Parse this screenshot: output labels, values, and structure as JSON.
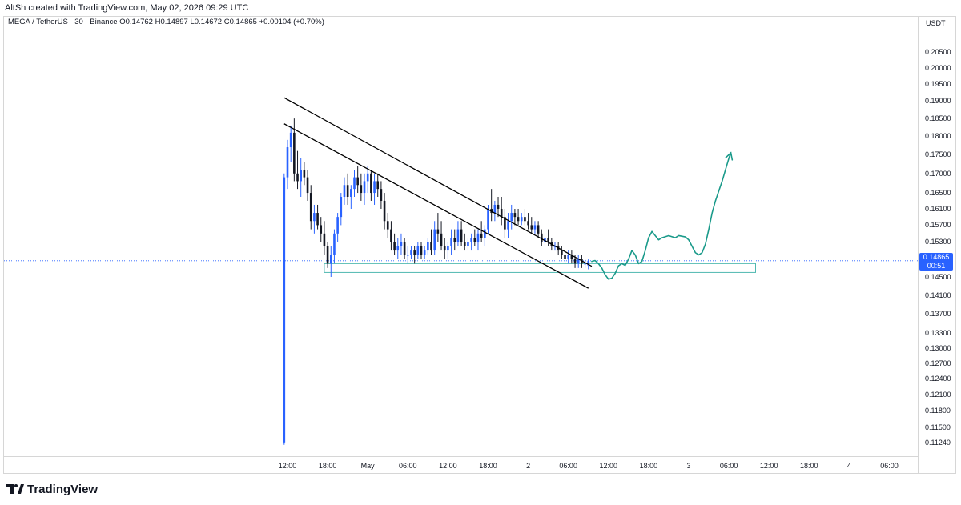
{
  "header": {
    "caption": "AltSh created with TradingView.com, May 02, 2026 09:29 UTC"
  },
  "legend": {
    "symbol": "MEGA / TetherUS · 30 · Binance",
    "open": "O0.14762",
    "high": "H0.14897",
    "low": "L0.14672",
    "close": "C0.14865",
    "change": "+0.00104 (+0.70%)"
  },
  "price_axis": {
    "unit": "USDT",
    "current_price": "0.14865",
    "countdown": "00:51"
  },
  "brand": {
    "name": "TradingView"
  },
  "colors": {
    "bull": "#2962ff",
    "bear": "#131722",
    "trendline": "#000000",
    "projection": "#1a9a8a",
    "support_zone": "#4fb8b0",
    "current_price_line": "#2962ff"
  },
  "chart_data": {
    "type": "candlestick",
    "title": "MEGA / TetherUS · 30 · Binance",
    "y_scale": "log",
    "ylim": [
      0.111,
      0.212
    ],
    "y_ticks": [
      "0.20500",
      "0.20000",
      "0.19500",
      "0.19000",
      "0.18500",
      "0.18000",
      "0.17500",
      "0.17000",
      "0.16500",
      "0.16100",
      "0.15700",
      "0.15300",
      "0.14900",
      "0.14500",
      "0.14100",
      "0.13700",
      "0.13300",
      "0.13000",
      "0.12700",
      "0.12400",
      "0.12100",
      "0.11800",
      "0.11500",
      "0.11240"
    ],
    "x_ticks": [
      "12:00",
      "18:00",
      "May",
      "06:00",
      "12:00",
      "18:00",
      "2",
      "06:00",
      "12:00",
      "18:00",
      "3",
      "06:00",
      "12:00",
      "18:00",
      "4",
      "06:00"
    ],
    "x_tick_times": [
      0,
      6,
      12,
      18,
      24,
      30,
      36,
      42,
      48,
      54,
      60,
      66,
      72,
      78,
      84,
      90
    ],
    "time_unit": "hours since May 1 12:00",
    "candles": [
      {
        "t": -0.5,
        "o": 0.1124,
        "h": 0.17,
        "l": 0.112,
        "c": 0.169
      },
      {
        "t": 0.0,
        "o": 0.169,
        "h": 0.179,
        "l": 0.166,
        "c": 0.177
      },
      {
        "t": 0.5,
        "o": 0.177,
        "h": 0.183,
        "l": 0.173,
        "c": 0.181
      },
      {
        "t": 1.0,
        "o": 0.181,
        "h": 0.185,
        "l": 0.168,
        "c": 0.17
      },
      {
        "t": 1.5,
        "o": 0.17,
        "h": 0.176,
        "l": 0.166,
        "c": 0.168
      },
      {
        "t": 2.0,
        "o": 0.168,
        "h": 0.174,
        "l": 0.164,
        "c": 0.171
      },
      {
        "t": 2.5,
        "o": 0.171,
        "h": 0.173,
        "l": 0.167,
        "c": 0.169
      },
      {
        "t": 3.0,
        "o": 0.169,
        "h": 0.171,
        "l": 0.163,
        "c": 0.165
      },
      {
        "t": 3.5,
        "o": 0.165,
        "h": 0.167,
        "l": 0.156,
        "c": 0.158
      },
      {
        "t": 4.0,
        "o": 0.158,
        "h": 0.162,
        "l": 0.155,
        "c": 0.16
      },
      {
        "t": 4.5,
        "o": 0.16,
        "h": 0.162,
        "l": 0.156,
        "c": 0.157
      },
      {
        "t": 5.0,
        "o": 0.157,
        "h": 0.159,
        "l": 0.153,
        "c": 0.155
      },
      {
        "t": 5.5,
        "o": 0.155,
        "h": 0.158,
        "l": 0.15,
        "c": 0.152
      },
      {
        "t": 6.0,
        "o": 0.152,
        "h": 0.153,
        "l": 0.147,
        "c": 0.148
      },
      {
        "t": 6.5,
        "o": 0.148,
        "h": 0.152,
        "l": 0.145,
        "c": 0.15
      },
      {
        "t": 7.0,
        "o": 0.15,
        "h": 0.156,
        "l": 0.148,
        "c": 0.155
      },
      {
        "t": 7.5,
        "o": 0.155,
        "h": 0.16,
        "l": 0.153,
        "c": 0.159
      },
      {
        "t": 8.0,
        "o": 0.159,
        "h": 0.165,
        "l": 0.157,
        "c": 0.164
      },
      {
        "t": 8.5,
        "o": 0.164,
        "h": 0.169,
        "l": 0.162,
        "c": 0.167
      },
      {
        "t": 9.0,
        "o": 0.167,
        "h": 0.17,
        "l": 0.162,
        "c": 0.164
      },
      {
        "t": 9.5,
        "o": 0.164,
        "h": 0.167,
        "l": 0.161,
        "c": 0.166
      },
      {
        "t": 10.0,
        "o": 0.166,
        "h": 0.171,
        "l": 0.164,
        "c": 0.169
      },
      {
        "t": 10.5,
        "o": 0.169,
        "h": 0.172,
        "l": 0.165,
        "c": 0.167
      },
      {
        "t": 11.0,
        "o": 0.167,
        "h": 0.17,
        "l": 0.163,
        "c": 0.165
      },
      {
        "t": 11.5,
        "o": 0.165,
        "h": 0.17,
        "l": 0.162,
        "c": 0.168
      },
      {
        "t": 12.0,
        "o": 0.168,
        "h": 0.172,
        "l": 0.165,
        "c": 0.17
      },
      {
        "t": 12.5,
        "o": 0.17,
        "h": 0.171,
        "l": 0.163,
        "c": 0.165
      },
      {
        "t": 13.0,
        "o": 0.165,
        "h": 0.17,
        "l": 0.162,
        "c": 0.168
      },
      {
        "t": 13.5,
        "o": 0.168,
        "h": 0.17,
        "l": 0.164,
        "c": 0.166
      },
      {
        "t": 14.0,
        "o": 0.166,
        "h": 0.168,
        "l": 0.161,
        "c": 0.163
      },
      {
        "t": 14.5,
        "o": 0.163,
        "h": 0.165,
        "l": 0.156,
        "c": 0.158
      },
      {
        "t": 15.0,
        "o": 0.158,
        "h": 0.16,
        "l": 0.154,
        "c": 0.156
      },
      {
        "t": 15.5,
        "o": 0.156,
        "h": 0.158,
        "l": 0.151,
        "c": 0.153
      },
      {
        "t": 16.0,
        "o": 0.153,
        "h": 0.155,
        "l": 0.15,
        "c": 0.151
      },
      {
        "t": 16.5,
        "o": 0.151,
        "h": 0.154,
        "l": 0.149,
        "c": 0.152
      },
      {
        "t": 17.0,
        "o": 0.152,
        "h": 0.155,
        "l": 0.15,
        "c": 0.153
      },
      {
        "t": 17.5,
        "o": 0.153,
        "h": 0.154,
        "l": 0.149,
        "c": 0.15
      },
      {
        "t": 18.0,
        "o": 0.15,
        "h": 0.152,
        "l": 0.148,
        "c": 0.15
      },
      {
        "t": 18.5,
        "o": 0.15,
        "h": 0.152,
        "l": 0.149,
        "c": 0.151
      },
      {
        "t": 19.0,
        "o": 0.151,
        "h": 0.152,
        "l": 0.148,
        "c": 0.15
      },
      {
        "t": 19.5,
        "o": 0.15,
        "h": 0.153,
        "l": 0.149,
        "c": 0.152
      },
      {
        "t": 20.0,
        "o": 0.152,
        "h": 0.153,
        "l": 0.149,
        "c": 0.15
      },
      {
        "t": 20.5,
        "o": 0.15,
        "h": 0.152,
        "l": 0.149,
        "c": 0.151
      },
      {
        "t": 21.0,
        "o": 0.151,
        "h": 0.154,
        "l": 0.15,
        "c": 0.153
      },
      {
        "t": 21.5,
        "o": 0.153,
        "h": 0.156,
        "l": 0.15,
        "c": 0.151
      },
      {
        "t": 22.0,
        "o": 0.151,
        "h": 0.158,
        "l": 0.15,
        "c": 0.156
      },
      {
        "t": 22.5,
        "o": 0.156,
        "h": 0.16,
        "l": 0.153,
        "c": 0.155
      },
      {
        "t": 23.0,
        "o": 0.155,
        "h": 0.158,
        "l": 0.151,
        "c": 0.152
      },
      {
        "t": 23.5,
        "o": 0.152,
        "h": 0.154,
        "l": 0.149,
        "c": 0.151
      },
      {
        "t": 24.0,
        "o": 0.151,
        "h": 0.153,
        "l": 0.149,
        "c": 0.152
      },
      {
        "t": 24.5,
        "o": 0.152,
        "h": 0.156,
        "l": 0.15,
        "c": 0.154
      },
      {
        "t": 25.0,
        "o": 0.154,
        "h": 0.156,
        "l": 0.151,
        "c": 0.153
      },
      {
        "t": 25.5,
        "o": 0.153,
        "h": 0.158,
        "l": 0.152,
        "c": 0.156
      },
      {
        "t": 26.0,
        "o": 0.156,
        "h": 0.158,
        "l": 0.152,
        "c": 0.153
      },
      {
        "t": 26.5,
        "o": 0.153,
        "h": 0.155,
        "l": 0.151,
        "c": 0.152
      },
      {
        "t": 27.0,
        "o": 0.152,
        "h": 0.154,
        "l": 0.151,
        "c": 0.153
      },
      {
        "t": 27.5,
        "o": 0.153,
        "h": 0.155,
        "l": 0.151,
        "c": 0.154
      },
      {
        "t": 28.0,
        "o": 0.154,
        "h": 0.156,
        "l": 0.152,
        "c": 0.153
      },
      {
        "t": 28.5,
        "o": 0.153,
        "h": 0.156,
        "l": 0.151,
        "c": 0.155
      },
      {
        "t": 29.0,
        "o": 0.155,
        "h": 0.158,
        "l": 0.153,
        "c": 0.154
      },
      {
        "t": 29.5,
        "o": 0.154,
        "h": 0.157,
        "l": 0.152,
        "c": 0.156
      },
      {
        "t": 30.0,
        "o": 0.156,
        "h": 0.162,
        "l": 0.155,
        "c": 0.161
      },
      {
        "t": 30.5,
        "o": 0.161,
        "h": 0.166,
        "l": 0.158,
        "c": 0.16
      },
      {
        "t": 31.0,
        "o": 0.16,
        "h": 0.163,
        "l": 0.158,
        "c": 0.162
      },
      {
        "t": 31.5,
        "o": 0.162,
        "h": 0.164,
        "l": 0.159,
        "c": 0.161
      },
      {
        "t": 32.0,
        "o": 0.161,
        "h": 0.164,
        "l": 0.157,
        "c": 0.159
      },
      {
        "t": 32.5,
        "o": 0.159,
        "h": 0.161,
        "l": 0.154,
        "c": 0.156
      },
      {
        "t": 33.0,
        "o": 0.156,
        "h": 0.16,
        "l": 0.154,
        "c": 0.158
      },
      {
        "t": 33.5,
        "o": 0.158,
        "h": 0.162,
        "l": 0.156,
        "c": 0.16
      },
      {
        "t": 34.0,
        "o": 0.16,
        "h": 0.161,
        "l": 0.157,
        "c": 0.159
      },
      {
        "t": 34.5,
        "o": 0.159,
        "h": 0.161,
        "l": 0.157,
        "c": 0.158
      },
      {
        "t": 35.0,
        "o": 0.158,
        "h": 0.16,
        "l": 0.157,
        "c": 0.159
      },
      {
        "t": 35.5,
        "o": 0.159,
        "h": 0.161,
        "l": 0.157,
        "c": 0.158
      },
      {
        "t": 36.0,
        "o": 0.158,
        "h": 0.16,
        "l": 0.156,
        "c": 0.157
      },
      {
        "t": 36.5,
        "o": 0.157,
        "h": 0.159,
        "l": 0.155,
        "c": 0.156
      },
      {
        "t": 37.0,
        "o": 0.156,
        "h": 0.158,
        "l": 0.155,
        "c": 0.157
      },
      {
        "t": 37.5,
        "o": 0.157,
        "h": 0.158,
        "l": 0.154,
        "c": 0.155
      },
      {
        "t": 38.0,
        "o": 0.155,
        "h": 0.156,
        "l": 0.152,
        "c": 0.153
      },
      {
        "t": 38.5,
        "o": 0.153,
        "h": 0.155,
        "l": 0.152,
        "c": 0.154
      },
      {
        "t": 39.0,
        "o": 0.154,
        "h": 0.156,
        "l": 0.152,
        "c": 0.153
      },
      {
        "t": 39.5,
        "o": 0.153,
        "h": 0.154,
        "l": 0.151,
        "c": 0.152
      },
      {
        "t": 40.0,
        "o": 0.152,
        "h": 0.153,
        "l": 0.151,
        "c": 0.152
      },
      {
        "t": 40.5,
        "o": 0.152,
        "h": 0.153,
        "l": 0.15,
        "c": 0.151
      },
      {
        "t": 41.0,
        "o": 0.151,
        "h": 0.152,
        "l": 0.149,
        "c": 0.15
      },
      {
        "t": 41.5,
        "o": 0.15,
        "h": 0.151,
        "l": 0.148,
        "c": 0.149
      },
      {
        "t": 42.0,
        "o": 0.149,
        "h": 0.151,
        "l": 0.148,
        "c": 0.15
      },
      {
        "t": 42.5,
        "o": 0.15,
        "h": 0.151,
        "l": 0.148,
        "c": 0.149
      },
      {
        "t": 43.0,
        "o": 0.149,
        "h": 0.15,
        "l": 0.147,
        "c": 0.148
      },
      {
        "t": 43.5,
        "o": 0.148,
        "h": 0.15,
        "l": 0.147,
        "c": 0.149
      },
      {
        "t": 44.0,
        "o": 0.149,
        "h": 0.15,
        "l": 0.147,
        "c": 0.148
      },
      {
        "t": 44.5,
        "o": 0.148,
        "h": 0.149,
        "l": 0.147,
        "c": 0.148
      },
      {
        "t": 45.0,
        "o": 0.1476,
        "h": 0.149,
        "l": 0.1467,
        "c": 0.14865
      }
    ],
    "trendlines": [
      {
        "name": "channel-upper",
        "t1": -0.5,
        "p1": 0.191,
        "t2": 45.5,
        "p2": 0.1474
      },
      {
        "name": "channel-lower",
        "t1": -0.5,
        "p1": 0.1835,
        "t2": 45.0,
        "p2": 0.1425
      }
    ],
    "support_zone": {
      "t_start": 5.5,
      "t_end": 70.0,
      "p_low": 0.146,
      "p_high": 0.148
    },
    "projection_path": [
      {
        "t": 45.5,
        "p": 0.1485
      },
      {
        "t": 46.0,
        "p": 0.1487
      },
      {
        "t": 46.5,
        "p": 0.148
      },
      {
        "t": 47.0,
        "p": 0.147
      },
      {
        "t": 47.5,
        "p": 0.1455
      },
      {
        "t": 48.0,
        "p": 0.1445
      },
      {
        "t": 48.5,
        "p": 0.1447
      },
      {
        "t": 49.0,
        "p": 0.1458
      },
      {
        "t": 49.5,
        "p": 0.1475
      },
      {
        "t": 50.0,
        "p": 0.148
      },
      {
        "t": 50.5,
        "p": 0.1476
      },
      {
        "t": 51.0,
        "p": 0.149
      },
      {
        "t": 51.5,
        "p": 0.151
      },
      {
        "t": 52.0,
        "p": 0.15
      },
      {
        "t": 52.5,
        "p": 0.148
      },
      {
        "t": 53.0,
        "p": 0.1485
      },
      {
        "t": 53.5,
        "p": 0.151
      },
      {
        "t": 54.0,
        "p": 0.154
      },
      {
        "t": 54.5,
        "p": 0.1555
      },
      {
        "t": 55.0,
        "p": 0.1545
      },
      {
        "t": 55.5,
        "p": 0.1535
      },
      {
        "t": 56.0,
        "p": 0.154
      },
      {
        "t": 57.0,
        "p": 0.1545
      },
      {
        "t": 58.0,
        "p": 0.154
      },
      {
        "t": 58.5,
        "p": 0.1545
      },
      {
        "t": 59.5,
        "p": 0.1542
      },
      {
        "t": 60.0,
        "p": 0.1535
      },
      {
        "t": 60.5,
        "p": 0.152
      },
      {
        "t": 61.0,
        "p": 0.1505
      },
      {
        "t": 61.5,
        "p": 0.15
      },
      {
        "t": 62.0,
        "p": 0.1505
      },
      {
        "t": 62.5,
        "p": 0.1525
      },
      {
        "t": 63.0,
        "p": 0.156
      },
      {
        "t": 63.5,
        "p": 0.16
      },
      {
        "t": 64.0,
        "p": 0.163
      },
      {
        "t": 64.5,
        "p": 0.1655
      },
      {
        "t": 65.0,
        "p": 0.168
      },
      {
        "t": 65.5,
        "p": 0.171
      },
      {
        "t": 66.0,
        "p": 0.174
      },
      {
        "t": 66.3,
        "p": 0.1755
      }
    ]
  }
}
